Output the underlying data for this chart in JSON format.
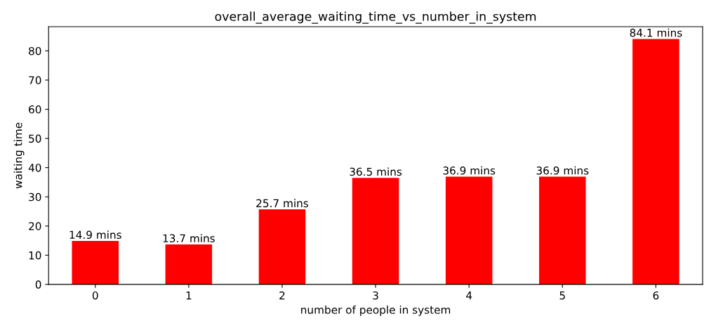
{
  "chart_data": {
    "type": "bar",
    "title": "overall_average_waiting_time_vs_number_in_system",
    "xlabel": "number of people in system",
    "ylabel": "waiting time",
    "categories": [
      "0",
      "1",
      "2",
      "3",
      "4",
      "5",
      "6"
    ],
    "values": [
      14.9,
      13.7,
      25.7,
      36.5,
      36.9,
      36.9,
      84.1
    ],
    "value_labels": [
      "14.9 mins",
      "13.7 mins",
      "25.7 mins",
      "36.5 mins",
      "36.9 mins",
      "36.9 mins",
      "84.1 mins"
    ],
    "color": "#ff0000",
    "ylim": [
      0,
      88.3
    ],
    "yticks": [
      0,
      10,
      20,
      30,
      40,
      50,
      60,
      70,
      80
    ],
    "grid": false,
    "legend": false
  }
}
